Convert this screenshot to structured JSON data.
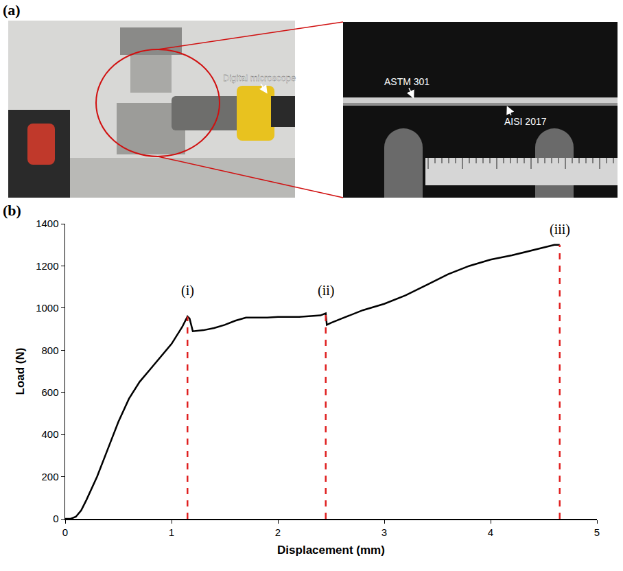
{
  "panel_a": {
    "label": "(a)",
    "labels": {
      "microscope": "Digital microscope",
      "top_layer": "ASTM 301",
      "bottom_layer": "AISI 2017"
    }
  },
  "chart_data": {
    "panel_label": "(b)",
    "type": "line",
    "x_label": "Displacement (mm)",
    "y_label": "Load (N)",
    "color": "#000000",
    "x": [
      0,
      0.05,
      0.1,
      0.15,
      0.2,
      0.3,
      0.4,
      0.5,
      0.6,
      0.7,
      0.8,
      0.9,
      1.0,
      1.1,
      1.15,
      1.17,
      1.2,
      1.3,
      1.4,
      1.5,
      1.6,
      1.7,
      1.8,
      1.9,
      2.0,
      2.2,
      2.4,
      2.45,
      2.46,
      2.5,
      2.6,
      2.8,
      3.0,
      3.2,
      3.4,
      3.6,
      3.8,
      4.0,
      4.2,
      4.4,
      4.6,
      4.65
    ],
    "values": [
      0,
      0,
      10,
      40,
      90,
      200,
      330,
      460,
      570,
      650,
      710,
      770,
      830,
      910,
      960,
      950,
      890,
      895,
      905,
      920,
      940,
      955,
      955,
      955,
      958,
      958,
      965,
      975,
      920,
      930,
      950,
      990,
      1020,
      1060,
      1110,
      1160,
      1200,
      1230,
      1250,
      1275,
      1300,
      1300
    ],
    "xlim": [
      0,
      5
    ],
    "xticks": [
      0,
      1,
      2,
      3,
      4,
      5
    ],
    "ylim": [
      0,
      1400
    ],
    "yticks": [
      0,
      200,
      400,
      600,
      800,
      1000,
      1200,
      1400
    ],
    "grid": false,
    "annotations": [
      {
        "text": "(i)",
        "x": 1.15,
        "y": 1040,
        "line_y": 960,
        "line_style": "dashed",
        "color": "#e02020"
      },
      {
        "text": "(ii)",
        "x": 2.45,
        "y": 1040,
        "line_y": 975,
        "line_style": "dashed",
        "color": "#e02020"
      },
      {
        "text": "(iii)",
        "x": 4.65,
        "y": 1330,
        "line_y": 1300,
        "line_style": "dashed",
        "color": "#e02020"
      }
    ]
  }
}
